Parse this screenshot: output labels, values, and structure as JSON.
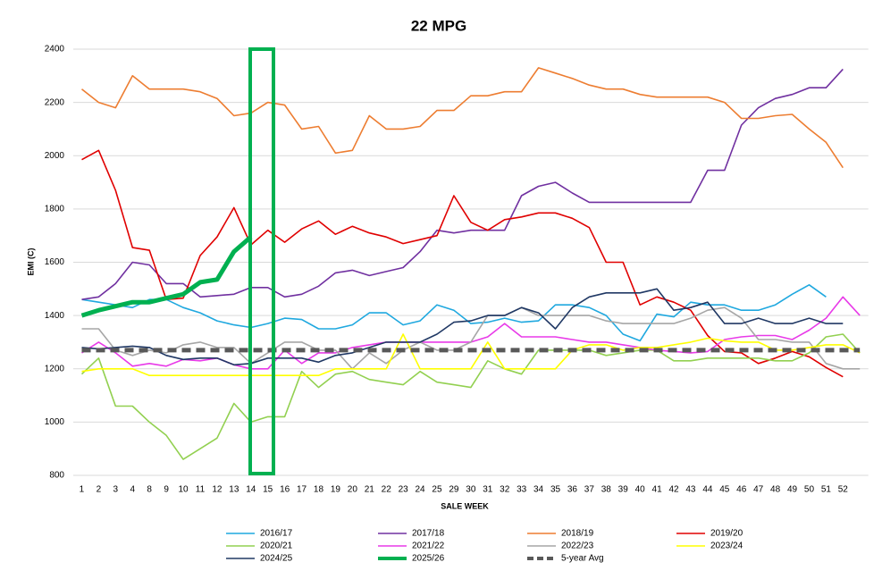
{
  "chart_data": {
    "type": "line",
    "title": "22 MPG",
    "x_label": "SALE WEEK",
    "y_label": "EMI (C)",
    "categories": [
      "1",
      "2",
      "3",
      "4",
      "8",
      "9",
      "10",
      "11",
      "12",
      "13",
      "14",
      "15",
      "16",
      "17",
      "18",
      "19",
      "20",
      "21",
      "22",
      "23",
      "24",
      "25",
      "29",
      "30",
      "31",
      "32",
      "33",
      "34",
      "35",
      "36",
      "37",
      "38",
      "39",
      "40",
      "41",
      "42",
      "43",
      "44",
      "45",
      "46",
      "47",
      "48",
      "49",
      "50",
      "51",
      "52",
      null
    ],
    "ylim": [
      800,
      2400
    ],
    "yticks": [
      800,
      1000,
      1200,
      1400,
      1600,
      1800,
      2000,
      2200,
      2400
    ],
    "grid": true,
    "legend": "bottom",
    "series": [
      {
        "name": "2016/17",
        "color": "#1fa8df",
        "values": [
          1460,
          1450,
          1440,
          1430,
          1460,
          1460,
          1430,
          1410,
          1380,
          1365,
          1355,
          1370,
          1390,
          1385,
          1350,
          1350,
          1365,
          1410,
          1410,
          1365,
          1380,
          1440,
          1420,
          1370,
          1375,
          1390,
          1375,
          1380,
          1440,
          1440,
          1430,
          1400,
          1330,
          1305,
          1405,
          1395,
          1450,
          1440,
          1440,
          1420,
          1420,
          1440,
          1480,
          1515,
          1470,
          null,
          null
        ]
      },
      {
        "name": "2017/18",
        "color": "#7030a0",
        "values": [
          1460,
          1470,
          1520,
          1600,
          1590,
          1520,
          1520,
          1470,
          1475,
          1480,
          1505,
          1505,
          1470,
          1480,
          1510,
          1560,
          1570,
          1550,
          1565,
          1580,
          1640,
          1720,
          1710,
          1720,
          1720,
          1720,
          1850,
          1885,
          1900,
          1860,
          1825,
          1825,
          1825,
          1825,
          1825,
          1825,
          1825,
          1945,
          1945,
          2115,
          2180,
          2215,
          2230,
          2255,
          2255,
          2325,
          null
        ]
      },
      {
        "name": "2018/19",
        "color": "#ed7d31",
        "values": [
          2250,
          2200,
          2180,
          2300,
          2250,
          2250,
          2250,
          2240,
          2215,
          2150,
          2160,
          2200,
          2190,
          2100,
          2110,
          2010,
          2020,
          2150,
          2100,
          2100,
          2110,
          2170,
          2170,
          2225,
          2225,
          2240,
          2240,
          2330,
          2310,
          2290,
          2265,
          2250,
          2250,
          2230,
          2220,
          2220,
          2220,
          2220,
          2200,
          2140,
          2140,
          2150,
          2155,
          2100,
          2050,
          1955,
          null
        ]
      },
      {
        "name": "2019/20",
        "color": "#e00000",
        "values": [
          1985,
          2020,
          1870,
          1655,
          1645,
          1460,
          1465,
          1625,
          1695,
          1805,
          1665,
          1720,
          1675,
          1725,
          1755,
          1705,
          1735,
          1710,
          1695,
          1670,
          1685,
          1700,
          1850,
          1750,
          1720,
          1760,
          1770,
          1785,
          1785,
          1765,
          1730,
          1600,
          1600,
          1440,
          1470,
          1450,
          1420,
          1325,
          1265,
          1260,
          1220,
          1240,
          1265,
          1245,
          1205,
          1170,
          null
        ]
      },
      {
        "name": "2020/21",
        "color": "#92d050",
        "values": [
          1180,
          1240,
          1060,
          1060,
          1000,
          950,
          860,
          900,
          940,
          1070,
          1000,
          1020,
          1020,
          1190,
          1130,
          1180,
          1190,
          1160,
          1150,
          1140,
          1190,
          1150,
          1140,
          1130,
          1230,
          1200,
          1180,
          1270,
          1270,
          1270,
          1270,
          1250,
          1260,
          1270,
          1270,
          1230,
          1230,
          1240,
          1240,
          1240,
          1240,
          1230,
          1230,
          1260,
          1320,
          1330,
          1260
        ]
      },
      {
        "name": "2021/22",
        "color": "#e83ae8",
        "values": [
          1260,
          1300,
          1260,
          1210,
          1220,
          1210,
          1235,
          1230,
          1240,
          1215,
          1200,
          1200,
          1270,
          1220,
          1260,
          1260,
          1280,
          1290,
          1300,
          1300,
          1300,
          1300,
          1300,
          1300,
          1320,
          1370,
          1320,
          1320,
          1320,
          1310,
          1300,
          1300,
          1290,
          1280,
          1270,
          1265,
          1260,
          1265,
          1310,
          1320,
          1325,
          1325,
          1310,
          1345,
          1390,
          1470,
          1400
        ]
      },
      {
        "name": "2022/23",
        "color": "#a6a6a6",
        "values": [
          1350,
          1350,
          1270,
          1250,
          1270,
          1260,
          1290,
          1300,
          1280,
          1280,
          1220,
          1260,
          1300,
          1300,
          1270,
          1270,
          1200,
          1260,
          1220,
          1270,
          1300,
          1270,
          1270,
          1300,
          1400,
          1400,
          1430,
          1400,
          1400,
          1400,
          1400,
          1380,
          1370,
          1370,
          1370,
          1370,
          1390,
          1420,
          1430,
          1390,
          1310,
          1310,
          1300,
          1300,
          1220,
          1200,
          1200
        ]
      },
      {
        "name": "2023/24",
        "color": "#ffff00",
        "values": [
          1190,
          1200,
          1200,
          1200,
          1175,
          1175,
          1175,
          1175,
          1175,
          1175,
          1175,
          1175,
          1175,
          1175,
          1175,
          1200,
          1200,
          1200,
          1200,
          1330,
          1200,
          1200,
          1200,
          1200,
          1300,
          1200,
          1200,
          1200,
          1200,
          1270,
          1290,
          1290,
          1270,
          1280,
          1280,
          1290,
          1300,
          1315,
          1305,
          1300,
          1300,
          1270,
          1270,
          1280,
          1290,
          1290,
          1260
        ]
      },
      {
        "name": "2024/25",
        "color": "#203864",
        "values": [
          1280,
          1275,
          1280,
          1285,
          1280,
          1250,
          1235,
          1240,
          1240,
          1215,
          1220,
          1240,
          1240,
          1240,
          1225,
          1250,
          1260,
          1280,
          1300,
          1300,
          1300,
          1330,
          1375,
          1380,
          1400,
          1400,
          1430,
          1410,
          1350,
          1430,
          1470,
          1485,
          1485,
          1485,
          1500,
          1420,
          1430,
          1450,
          1370,
          1370,
          1390,
          1370,
          1370,
          1390,
          1370,
          1370,
          null
        ]
      },
      {
        "name": "2025/26",
        "color": "#00b050",
        "style": "bold",
        "values": [
          1400,
          1420,
          1435,
          1450,
          1450,
          1465,
          1480,
          1525,
          1535,
          1640,
          1695,
          null,
          null,
          null,
          null,
          null,
          null,
          null,
          null,
          null,
          null,
          null,
          null,
          null,
          null,
          null,
          null,
          null,
          null,
          null,
          null,
          null,
          null,
          null,
          null,
          null,
          null,
          null,
          null,
          null,
          null,
          null,
          null,
          null,
          null,
          null,
          null
        ]
      },
      {
        "name": "5-year Avg",
        "color": "#595959",
        "style": "dashed",
        "values": [
          1270,
          1270,
          1270,
          1270,
          1270,
          1270,
          1270,
          1270,
          1270,
          1270,
          1270,
          1270,
          1270,
          1270,
          1270,
          1270,
          1270,
          1270,
          1270,
          1270,
          1270,
          1270,
          1270,
          1270,
          1270,
          1270,
          1270,
          1270,
          1270,
          1270,
          1270,
          1270,
          1270,
          1270,
          1270,
          1270,
          1270,
          1270,
          1270,
          1270,
          1270,
          1270,
          1270,
          1270,
          1270,
          1270,
          1270
        ]
      }
    ]
  }
}
